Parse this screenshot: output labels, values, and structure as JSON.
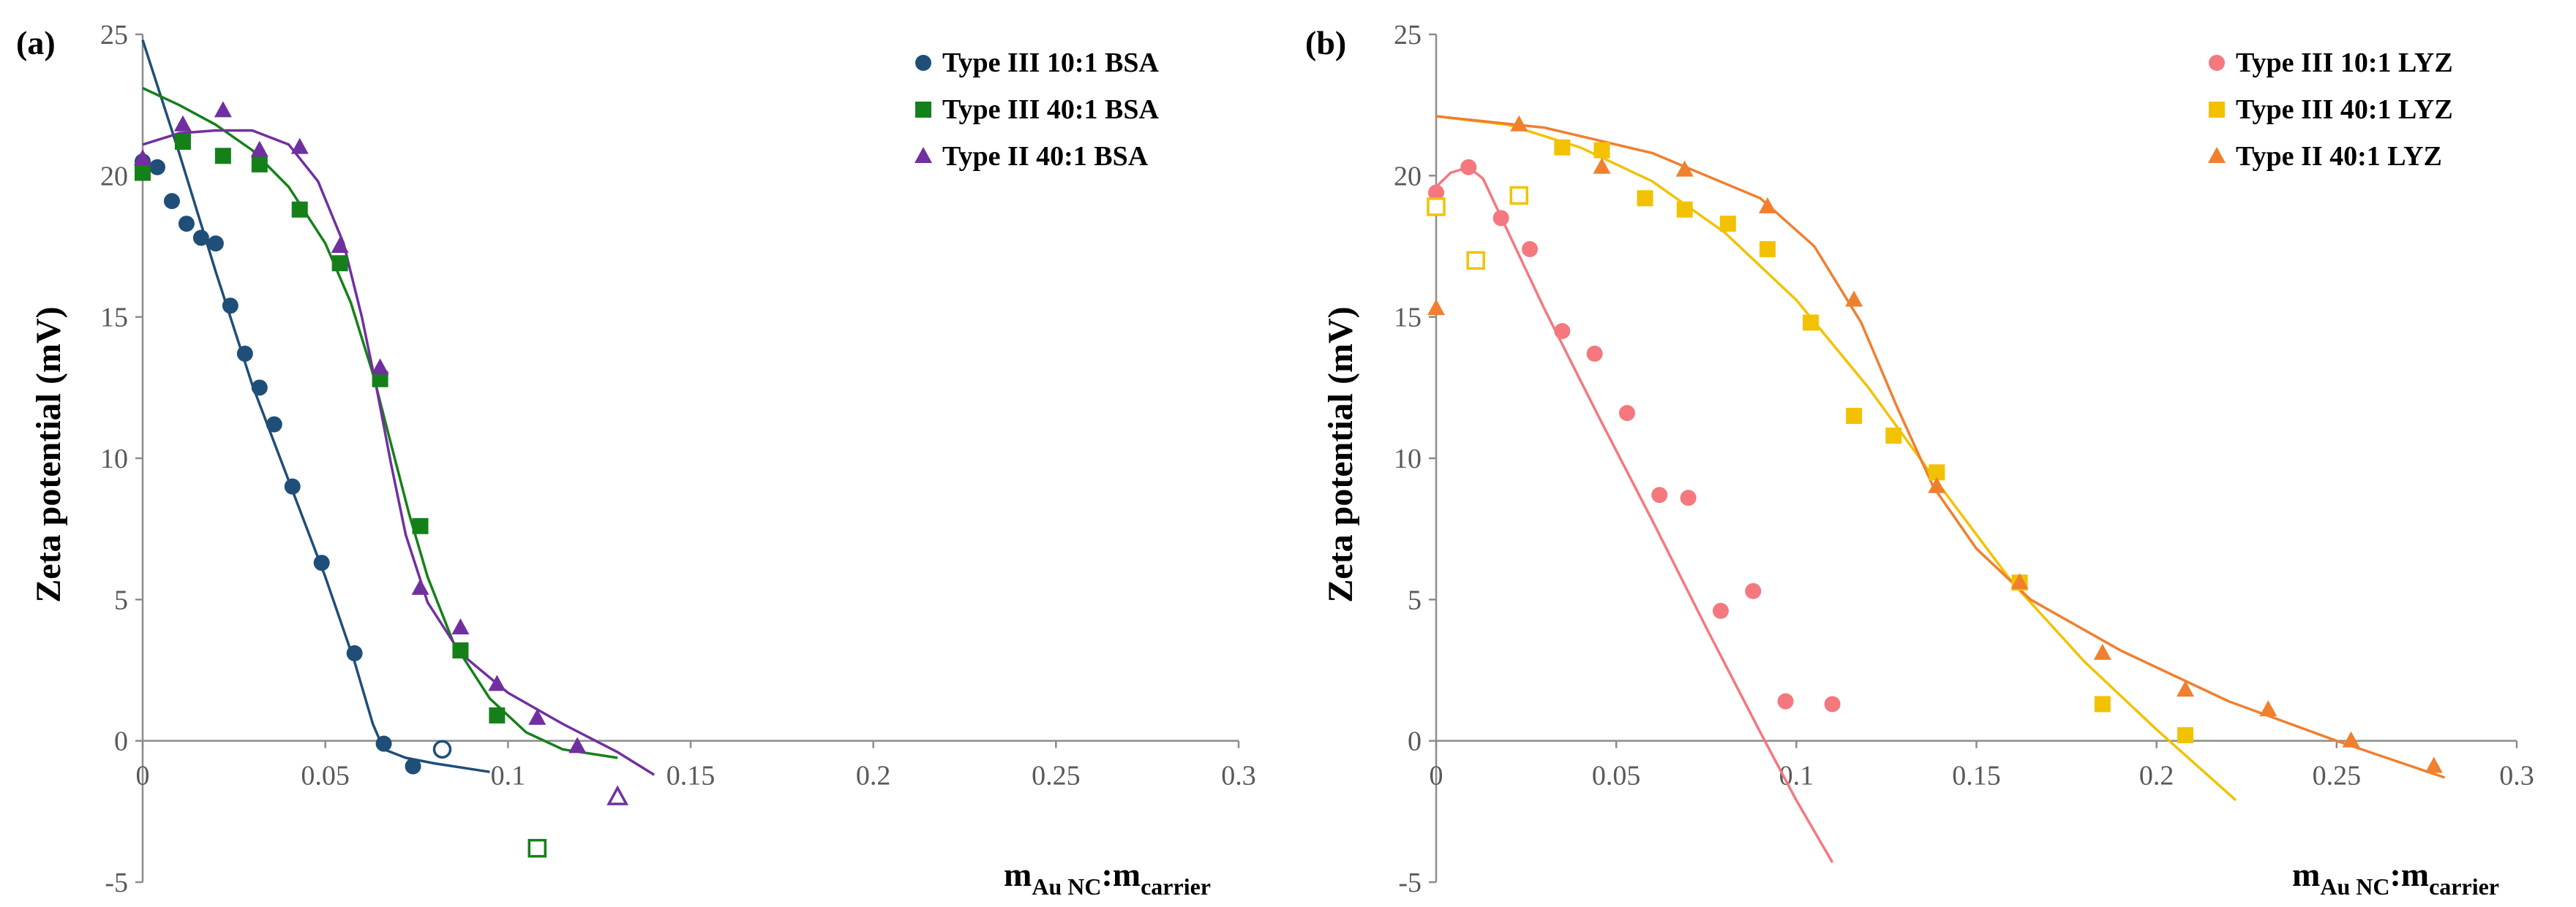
{
  "chart_data": [
    {
      "type": "scatter",
      "panel_label": "(a)",
      "ylabel": "Zeta potential (mV)",
      "xlabel": {
        "main": "m",
        "sub1": "Au NC",
        "colon": ":m",
        "sub2": "carrier"
      },
      "xlim": [
        0,
        0.3
      ],
      "ylim": [
        -5,
        25
      ],
      "xticks": [
        "0",
        "0.05",
        "0.1",
        "0.15",
        "0.2",
        "0.25",
        "0.3"
      ],
      "yticks": [
        "-5",
        "0",
        "5",
        "10",
        "15",
        "20",
        "25"
      ],
      "legend_position": "top-right",
      "series": [
        {
          "name": "Type III 10:1 BSA",
          "color": "#1f4e79",
          "marker": "circle",
          "points": [
            [
              0,
              20.5
            ],
            [
              0.004,
              20.3
            ],
            [
              0.008,
              19.1
            ],
            [
              0.012,
              18.3
            ],
            [
              0.016,
              17.8
            ],
            [
              0.02,
              17.6
            ],
            [
              0.024,
              15.4
            ],
            [
              0.028,
              13.7
            ],
            [
              0.032,
              12.5
            ],
            [
              0.036,
              11.2
            ],
            [
              0.041,
              9.0
            ],
            [
              0.049,
              6.3
            ],
            [
              0.058,
              3.1
            ],
            [
              0.066,
              -0.1
            ],
            [
              0.074,
              -0.9
            ]
          ],
          "open_points": [
            [
              0.082,
              -0.3
            ]
          ],
          "fit": [
            [
              0,
              24.8
            ],
            [
              0.01,
              20.8
            ],
            [
              0.02,
              16.6
            ],
            [
              0.03,
              12.6
            ],
            [
              0.04,
              9.2
            ],
            [
              0.05,
              5.8
            ],
            [
              0.058,
              2.8
            ],
            [
              0.063,
              0.6
            ],
            [
              0.066,
              -0.3
            ],
            [
              0.072,
              -0.6
            ],
            [
              0.08,
              -0.8
            ],
            [
              0.095,
              -1.1
            ]
          ]
        },
        {
          "name": "Type III 40:1 BSA",
          "color": "#15801a",
          "marker": "square",
          "points": [
            [
              0,
              20.1
            ],
            [
              0.011,
              21.2
            ],
            [
              0.022,
              20.7
            ],
            [
              0.032,
              20.4
            ],
            [
              0.043,
              18.8
            ],
            [
              0.054,
              16.9
            ],
            [
              0.065,
              12.8
            ],
            [
              0.076,
              7.6
            ],
            [
              0.087,
              3.2
            ],
            [
              0.097,
              0.9
            ]
          ],
          "open_points": [
            [
              0.108,
              -3.8
            ]
          ],
          "fit": [
            [
              0,
              23.1
            ],
            [
              0.01,
              22.5
            ],
            [
              0.02,
              21.8
            ],
            [
              0.03,
              20.9
            ],
            [
              0.04,
              19.6
            ],
            [
              0.05,
              17.6
            ],
            [
              0.057,
              15.5
            ],
            [
              0.063,
              13.0
            ],
            [
              0.068,
              10.5
            ],
            [
              0.073,
              8.0
            ],
            [
              0.078,
              5.8
            ],
            [
              0.085,
              3.5
            ],
            [
              0.095,
              1.5
            ],
            [
              0.105,
              0.3
            ],
            [
              0.115,
              -0.3
            ],
            [
              0.13,
              -0.6
            ]
          ]
        },
        {
          "name": "Type II 40:1 BSA",
          "color": "#7030a0",
          "marker": "triangle",
          "points": [
            [
              0,
              20.6
            ],
            [
              0.011,
              21.8
            ],
            [
              0.022,
              22.3
            ],
            [
              0.032,
              20.9
            ],
            [
              0.043,
              21.0
            ],
            [
              0.054,
              17.5
            ],
            [
              0.065,
              13.2
            ],
            [
              0.076,
              5.4
            ],
            [
              0.087,
              4.0
            ],
            [
              0.097,
              2.0
            ],
            [
              0.108,
              0.8
            ],
            [
              0.119,
              -0.2
            ]
          ],
          "open_points": [
            [
              0.13,
              -2.0
            ]
          ],
          "fit": [
            [
              0,
              21.1
            ],
            [
              0.01,
              21.5
            ],
            [
              0.02,
              21.6
            ],
            [
              0.03,
              21.6
            ],
            [
              0.04,
              21.1
            ],
            [
              0.048,
              19.8
            ],
            [
              0.055,
              17.6
            ],
            [
              0.06,
              15.0
            ],
            [
              0.064,
              12.5
            ],
            [
              0.068,
              9.8
            ],
            [
              0.072,
              7.3
            ],
            [
              0.078,
              4.9
            ],
            [
              0.087,
              3.1
            ],
            [
              0.1,
              1.7
            ],
            [
              0.115,
              0.6
            ],
            [
              0.13,
              -0.4
            ],
            [
              0.14,
              -1.2
            ]
          ]
        }
      ]
    },
    {
      "type": "scatter",
      "panel_label": "(b)",
      "ylabel": "Zeta potential (mV)",
      "xlabel": {
        "main": "m",
        "sub1": "Au NC",
        "colon": ":m",
        "sub2": "carrier"
      },
      "xlim": [
        0,
        0.3
      ],
      "ylim": [
        -5,
        25
      ],
      "xticks": [
        "0",
        "0.05",
        "0.1",
        "0.15",
        "0.2",
        "0.25",
        "0.3"
      ],
      "yticks": [
        "-5",
        "0",
        "5",
        "10",
        "15",
        "20",
        "25"
      ],
      "legend_position": "top-right",
      "series": [
        {
          "name": "Type III 10:1 LYZ",
          "color": "#f4787e",
          "marker": "circle",
          "points": [
            [
              0,
              19.4
            ],
            [
              0.009,
              20.3
            ],
            [
              0.018,
              18.5
            ],
            [
              0.026,
              17.4
            ],
            [
              0.035,
              14.5
            ],
            [
              0.044,
              13.7
            ],
            [
              0.053,
              11.6
            ],
            [
              0.062,
              8.7
            ],
            [
              0.07,
              8.6
            ],
            [
              0.079,
              4.6
            ],
            [
              0.088,
              5.3
            ],
            [
              0.097,
              1.4
            ],
            [
              0.11,
              1.3
            ]
          ],
          "open_points": [],
          "fit": [
            [
              0,
              19.6
            ],
            [
              0.004,
              20.1
            ],
            [
              0.009,
              20.3
            ],
            [
              0.013,
              19.9
            ],
            [
              0.02,
              18.0
            ],
            [
              0.03,
              15.3
            ],
            [
              0.045,
              11.5
            ],
            [
              0.06,
              7.8
            ],
            [
              0.075,
              4.0
            ],
            [
              0.09,
              0.3
            ],
            [
              0.1,
              -2.1
            ],
            [
              0.11,
              -4.3
            ]
          ]
        },
        {
          "name": "Type III 40:1 LYZ",
          "color": "#f2c200",
          "marker": "square",
          "points": [
            [
              0.035,
              21.0
            ],
            [
              0.046,
              20.9
            ],
            [
              0.058,
              19.2
            ],
            [
              0.069,
              18.8
            ],
            [
              0.081,
              18.3
            ],
            [
              0.092,
              17.4
            ],
            [
              0.104,
              14.8
            ],
            [
              0.116,
              11.5
            ],
            [
              0.127,
              10.8
            ],
            [
              0.139,
              9.5
            ],
            [
              0.162,
              5.6
            ],
            [
              0.185,
              1.3
            ],
            [
              0.208,
              0.2
            ]
          ],
          "open_points": [
            [
              0,
              18.9
            ],
            [
              0.011,
              17.0
            ],
            [
              0.023,
              19.3
            ]
          ],
          "fit": [
            [
              0,
              22.1
            ],
            [
              0.02,
              21.8
            ],
            [
              0.04,
              21.0
            ],
            [
              0.06,
              19.8
            ],
            [
              0.08,
              18.0
            ],
            [
              0.1,
              15.6
            ],
            [
              0.12,
              12.5
            ],
            [
              0.14,
              9.0
            ],
            [
              0.16,
              5.6
            ],
            [
              0.18,
              2.8
            ],
            [
              0.2,
              0.4
            ],
            [
              0.222,
              -2.1
            ]
          ]
        },
        {
          "name": "Type II 40:1 LYZ",
          "color": "#f07f2e",
          "marker": "triangle",
          "points": [
            [
              0,
              15.3
            ],
            [
              0.023,
              21.8
            ],
            [
              0.046,
              20.3
            ],
            [
              0.069,
              20.2
            ],
            [
              0.092,
              18.9
            ],
            [
              0.116,
              15.6
            ],
            [
              0.139,
              9.0
            ],
            [
              0.162,
              5.6
            ],
            [
              0.185,
              3.1
            ],
            [
              0.208,
              1.8
            ],
            [
              0.231,
              1.1
            ],
            [
              0.254,
              0.0
            ],
            [
              0.277,
              -0.9
            ]
          ],
          "open_points": [],
          "fit": [
            [
              0,
              22.1
            ],
            [
              0.03,
              21.7
            ],
            [
              0.06,
              20.8
            ],
            [
              0.09,
              19.2
            ],
            [
              0.105,
              17.5
            ],
            [
              0.118,
              14.8
            ],
            [
              0.128,
              11.8
            ],
            [
              0.138,
              9.0
            ],
            [
              0.15,
              6.8
            ],
            [
              0.165,
              5.0
            ],
            [
              0.19,
              3.2
            ],
            [
              0.22,
              1.4
            ],
            [
              0.25,
              0.0
            ],
            [
              0.28,
              -1.3
            ]
          ]
        }
      ]
    }
  ]
}
